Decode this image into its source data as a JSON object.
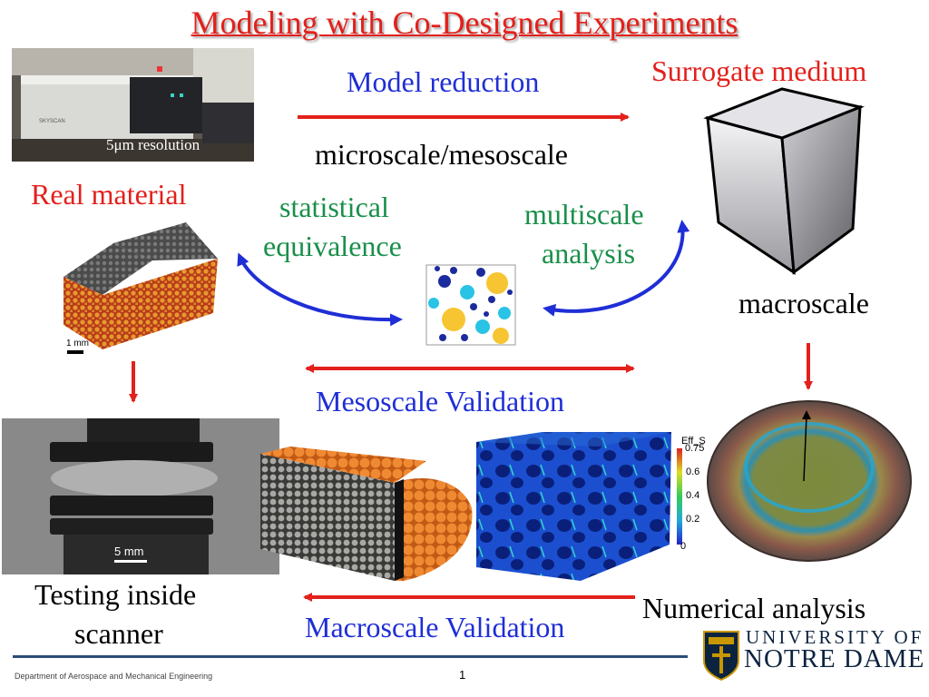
{
  "title": "Modeling with Co-Designed Experiments",
  "labels": {
    "model_reduction": "Model reduction",
    "surrogate_medium": "Surrogate medium",
    "micro_meso": "microscale/mesoscale",
    "real_material": "Real material",
    "statistical_1": "statistical",
    "statistical_2": "equivalence",
    "multiscale_1": "multiscale",
    "multiscale_2": "analysis",
    "macroscale": "macroscale",
    "mesoscale_validation": "Mesoscale Validation",
    "testing_1": "Testing inside",
    "testing_2": "scanner",
    "numerical_analysis": "Numerical analysis",
    "macroscale_validation": "Macroscale Validation"
  },
  "photo": {
    "resolution": "5μm resolution",
    "brand": "SKYSCAN"
  },
  "scale_bars": {
    "sample": "1 mm",
    "xray": "5 mm"
  },
  "colorbar": {
    "title": "Eff_S",
    "ticks": [
      "0.75",
      "0.6",
      "0.4",
      "0.2",
      "0"
    ]
  },
  "logo": {
    "university": "UNIVERSITY OF",
    "name": "NOTRE DAME"
  },
  "footer": {
    "department": "Department of Aerospace and Mechanical Engineering",
    "page": "1"
  },
  "colors": {
    "red": "#e3201b",
    "blue": "#1f2ed6",
    "green": "#1a8f4a",
    "navy": "#0c2340",
    "gold": "#c99700"
  }
}
